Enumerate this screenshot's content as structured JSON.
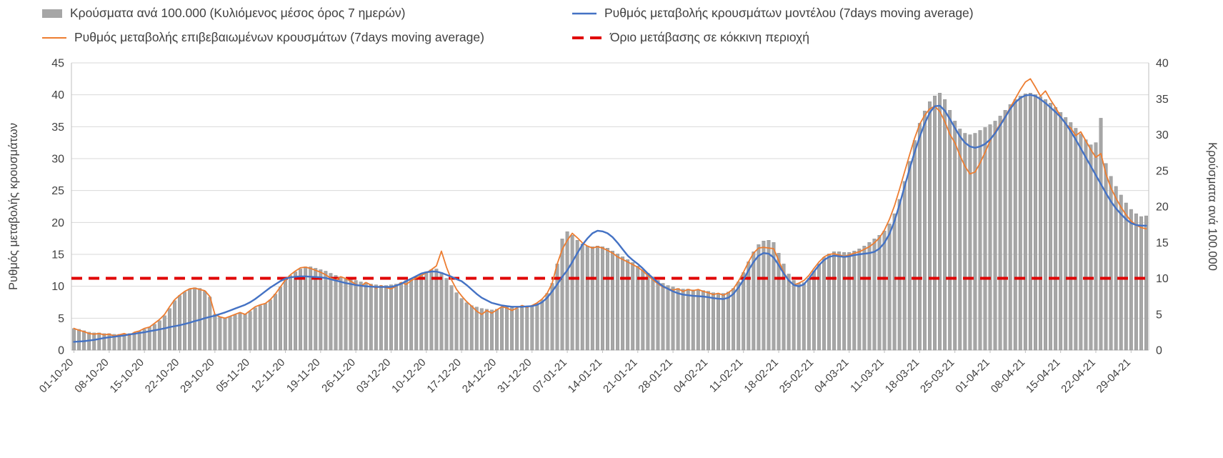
{
  "legend": {
    "items": [
      {
        "label": "Κρούσματα ανά 100.000 (Κυλιόμενος μέσος όρος 7 ημερών)",
        "type": "bar",
        "color": "#a6a6a6"
      },
      {
        "label": "Ρυθμός μεταβολής κρουσμάτων μοντέλου (7days moving average)",
        "type": "line",
        "color": "#4472c4"
      },
      {
        "label": "Ρυθμός μεταβολής επιβεβαιωμένων κρουσμάτων (7days moving average)",
        "type": "line",
        "color": "#ed7d31"
      },
      {
        "label": "Όριο μετάβασης σε κόκκινη περιοχή",
        "type": "dashed-line",
        "color": "#e00000"
      }
    ]
  },
  "chart_data": {
    "type": "bar+line",
    "x_tick_every_days": 7,
    "x_tick_labels": [
      "01-10-20",
      "08-10-20",
      "15-10-20",
      "22-10-20",
      "29-10-20",
      "05-11-20",
      "12-11-20",
      "19-11-20",
      "26-11-20",
      "03-12-20",
      "10-12-20",
      "17-12-20",
      "24-12-20",
      "31-12-20",
      "07-01-21",
      "14-01-21",
      "21-01-21",
      "28-01-21",
      "04-02-21",
      "11-02-21",
      "18-02-21",
      "25-02-21",
      "04-03-21",
      "11-03-21",
      "18-03-21",
      "25-03-21",
      "01-04-21",
      "08-04-21",
      "15-04-21",
      "22-04-21",
      "29-04-21"
    ],
    "axes": {
      "left": {
        "title": "Ρυθμός μεταβολής κρουσμάτων",
        "min": 0,
        "max": 45,
        "step": 5
      },
      "right": {
        "title": "Κρούσματα ανά 100.000",
        "min": 0,
        "max": 40,
        "step": 5
      }
    },
    "grid": true,
    "series": [
      {
        "name": "Κρούσματα ανά 100.000 (Κυλιόμενος μέσος όρος 7 ημερών)",
        "type": "bar",
        "axis": "right",
        "color": "#a6a6a6",
        "values": [
          3.0,
          2.9,
          2.7,
          2.5,
          2.4,
          2.4,
          2.3,
          2.3,
          2.2,
          2.2,
          2.3,
          2.3,
          2.4,
          2.6,
          2.9,
          3.2,
          3.6,
          4.1,
          4.8,
          5.8,
          6.9,
          7.6,
          8.1,
          8.5,
          8.7,
          8.6,
          8.2,
          7.4,
          5.0,
          4.6,
          4.5,
          4.7,
          4.9,
          5.1,
          5.0,
          5.4,
          5.9,
          6.2,
          6.5,
          7.0,
          7.8,
          8.8,
          9.8,
          10.4,
          10.9,
          11.3,
          11.6,
          11.6,
          11.4,
          11.2,
          11.0,
          10.7,
          10.4,
          10.2,
          10.0,
          9.9,
          9.7,
          9.5,
          9.4,
          9.2,
          9.1,
          9.0,
          9.0,
          9.1,
          9.2,
          9.4,
          9.7,
          9.9,
          10.2,
          10.6,
          10.9,
          11.2,
          11.3,
          10.8,
          10.0,
          9.0,
          8.0,
          7.2,
          6.6,
          6.2,
          6.0,
          5.8,
          5.7,
          5.6,
          5.7,
          5.9,
          6.0,
          5.9,
          5.8,
          5.9,
          6.0,
          6.2,
          6.5,
          7.0,
          7.9,
          9.3,
          12.0,
          15.5,
          16.5,
          16.0,
          15.3,
          14.8,
          14.5,
          14.4,
          14.5,
          14.4,
          14.2,
          13.8,
          13.4,
          13.0,
          12.6,
          12.2,
          11.7,
          11.2,
          10.7,
          10.2,
          9.7,
          9.3,
          9.0,
          8.8,
          8.6,
          8.5,
          8.5,
          8.4,
          8.4,
          8.3,
          8.2,
          8.0,
          7.9,
          7.9,
          8.1,
          8.6,
          9.5,
          10.8,
          12.3,
          13.7,
          14.7,
          15.2,
          15.3,
          15.0,
          13.5,
          12.0,
          10.6,
          9.7,
          9.3,
          9.4,
          10.0,
          11.0,
          12.0,
          12.9,
          13.4,
          13.7,
          13.7,
          13.6,
          13.6,
          13.8,
          14.1,
          14.5,
          15.0,
          15.5,
          16.0,
          16.6,
          17.6,
          19.0,
          21.0,
          23.5,
          26.3,
          29.2,
          31.6,
          33.3,
          34.6,
          35.4,
          35.8,
          34.9,
          33.4,
          31.9,
          30.8,
          30.2,
          30.0,
          30.2,
          30.6,
          31.0,
          31.4,
          31.9,
          32.6,
          33.4,
          34.2,
          34.9,
          35.4,
          35.7,
          35.8,
          35.6,
          35.3,
          34.9,
          34.4,
          33.8,
          33.1,
          32.4,
          31.7,
          30.9,
          30.1,
          29.3,
          28.6,
          28.9,
          32.3,
          26.0,
          24.2,
          22.8,
          21.6,
          20.5,
          19.6,
          19.0,
          18.6,
          18.7
        ]
      },
      {
        "name": "Ρυθμός μεταβολής κρουσμάτων μοντέλου (7days moving average)",
        "type": "line",
        "axis": "left",
        "color": "#4472c4",
        "values": [
          1.3,
          1.35,
          1.4,
          1.5,
          1.6,
          1.75,
          1.9,
          2.0,
          2.1,
          2.2,
          2.3,
          2.45,
          2.55,
          2.7,
          2.8,
          2.95,
          3.1,
          3.25,
          3.4,
          3.6,
          3.75,
          3.9,
          4.1,
          4.3,
          4.55,
          4.75,
          5.0,
          5.2,
          5.4,
          5.65,
          5.9,
          6.2,
          6.5,
          6.8,
          7.1,
          7.5,
          8.0,
          8.6,
          9.2,
          9.8,
          10.3,
          10.8,
          11.2,
          11.4,
          11.5,
          11.55,
          11.55,
          11.5,
          11.45,
          11.4,
          11.3,
          11.1,
          10.9,
          10.7,
          10.5,
          10.35,
          10.2,
          10.1,
          10.0,
          9.95,
          9.9,
          9.9,
          9.9,
          9.9,
          10.1,
          10.4,
          10.8,
          11.2,
          11.6,
          12.0,
          12.2,
          12.3,
          12.3,
          12.1,
          11.8,
          11.5,
          11.1,
          10.8,
          10.2,
          9.5,
          8.8,
          8.2,
          7.8,
          7.4,
          7.2,
          7.0,
          6.9,
          6.8,
          6.8,
          6.8,
          6.85,
          6.9,
          7.1,
          7.5,
          8.2,
          9.2,
          10.3,
          11.5,
          12.5,
          13.8,
          15.2,
          16.5,
          17.5,
          18.3,
          18.7,
          18.6,
          18.3,
          17.7,
          16.8,
          15.8,
          14.8,
          14.1,
          13.5,
          12.8,
          12.0,
          11.3,
          10.6,
          10.0,
          9.6,
          9.2,
          8.9,
          8.7,
          8.6,
          8.5,
          8.45,
          8.4,
          8.3,
          8.15,
          8.05,
          8.0,
          8.2,
          8.8,
          9.8,
          11.0,
          12.5,
          13.8,
          14.8,
          15.2,
          15.1,
          14.5,
          13.3,
          12.0,
          10.9,
          10.2,
          10.0,
          10.3,
          11.2,
          12.3,
          13.3,
          14.1,
          14.6,
          14.8,
          14.7,
          14.6,
          14.7,
          14.9,
          15.0,
          15.1,
          15.2,
          15.4,
          15.9,
          16.8,
          18.2,
          20.2,
          22.8,
          25.6,
          28.4,
          31.0,
          33.4,
          35.5,
          37.2,
          38.2,
          38.3,
          37.5,
          36.2,
          34.8,
          33.5,
          32.5,
          31.9,
          31.7,
          31.9,
          32.3,
          33.0,
          34.0,
          35.2,
          36.5,
          37.8,
          38.8,
          39.5,
          39.9,
          40.0,
          39.8,
          39.3,
          38.7,
          38.0,
          37.3,
          36.5,
          35.5,
          34.3,
          33.0,
          31.6,
          30.2,
          28.8,
          27.4,
          26.0,
          24.6,
          23.3,
          22.2,
          21.3,
          20.5,
          19.9,
          19.6,
          19.5,
          19.5
        ]
      },
      {
        "name": "Ρυθμός μεταβολής επιβεβαιωμένων κρουσμάτων (7days moving average)",
        "type": "line",
        "axis": "left",
        "color": "#ed7d31",
        "values": [
          3.4,
          3.1,
          2.9,
          2.6,
          2.5,
          2.6,
          2.4,
          2.5,
          2.2,
          2.4,
          2.6,
          2.3,
          2.8,
          3.0,
          3.4,
          3.6,
          4.2,
          4.8,
          5.6,
          6.8,
          7.9,
          8.6,
          9.2,
          9.6,
          9.7,
          9.5,
          9.3,
          8.4,
          5.6,
          5.2,
          5.0,
          5.3,
          5.6,
          5.9,
          5.6,
          6.2,
          6.8,
          7.1,
          7.3,
          7.9,
          8.8,
          9.9,
          11.0,
          11.8,
          12.4,
          12.9,
          13.0,
          12.8,
          12.5,
          12.2,
          11.8,
          11.3,
          11.0,
          11.5,
          11.2,
          10.8,
          10.3,
          10.0,
          10.6,
          10.2,
          9.7,
          10.1,
          9.8,
          9.6,
          10.0,
          10.6,
          10.3,
          10.9,
          11.3,
          11.7,
          12.1,
          12.6,
          13.2,
          15.5,
          13.0,
          11.0,
          9.5,
          8.5,
          7.6,
          6.9,
          6.1,
          5.6,
          6.2,
          5.8,
          6.3,
          6.8,
          6.6,
          6.2,
          6.6,
          7.0,
          6.7,
          7.0,
          7.4,
          8.0,
          8.9,
          10.5,
          13.5,
          15.8,
          17.2,
          18.3,
          17.6,
          16.8,
          16.3,
          16.0,
          16.2,
          16.0,
          15.6,
          15.2,
          14.6,
          14.2,
          13.8,
          13.4,
          13.0,
          12.4,
          11.7,
          11.0,
          10.4,
          9.9,
          9.6,
          9.4,
          9.6,
          9.2,
          9.5,
          9.3,
          9.5,
          9.2,
          9.0,
          8.7,
          8.9,
          8.6,
          9.0,
          9.6,
          10.8,
          12.2,
          13.8,
          15.2,
          16.0,
          16.1,
          16.0,
          15.9,
          14.0,
          12.2,
          10.8,
          10.2,
          10.5,
          10.9,
          11.7,
          12.8,
          13.8,
          14.6,
          15.0,
          15.1,
          14.9,
          14.7,
          14.9,
          15.2,
          15.4,
          15.8,
          16.2,
          16.8,
          17.6,
          18.8,
          20.5,
          22.6,
          25.2,
          27.9,
          30.6,
          33.2,
          35.4,
          36.8,
          37.8,
          38.2,
          37.4,
          35.8,
          33.8,
          32.5,
          30.5,
          28.8,
          27.6,
          27.9,
          29.3,
          31.0,
          32.8,
          34.2,
          35.4,
          36.6,
          38.0,
          39.4,
          40.8,
          42.0,
          42.5,
          41.2,
          39.8,
          40.6,
          39.2,
          38.0,
          36.6,
          35.4,
          34.8,
          33.6,
          34.2,
          32.8,
          31.4,
          30.2,
          30.8,
          27.6,
          25.4,
          23.8,
          22.4,
          21.2,
          20.2,
          19.6,
          19.2,
          19.0
        ]
      },
      {
        "name": "Όριο μετάβασης σε κόκκινη περιοχή",
        "type": "hline",
        "axis": "right",
        "value": 10,
        "color": "#e00000"
      }
    ]
  }
}
